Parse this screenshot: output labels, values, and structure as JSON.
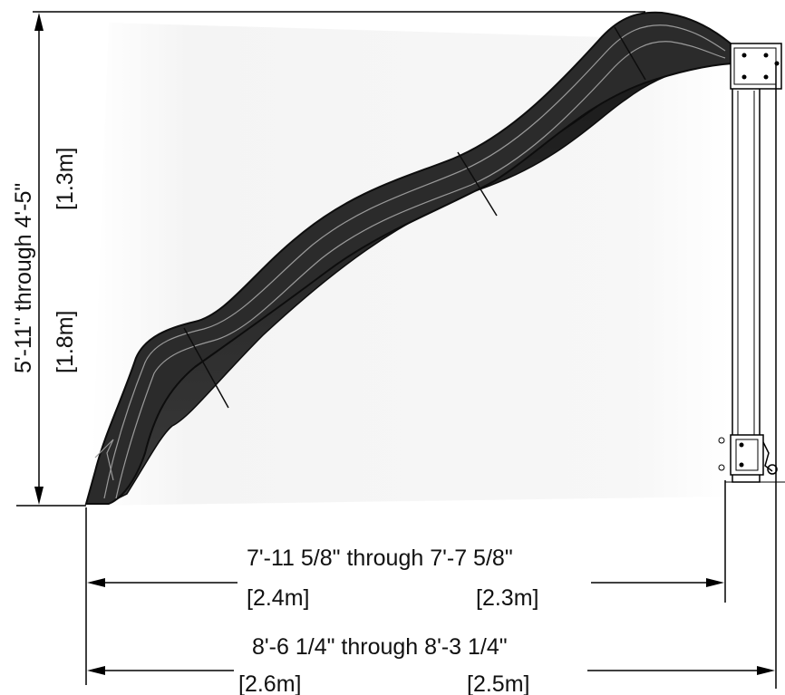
{
  "dimensions": {
    "height": {
      "text": "5'-11\" through 4'-5\"",
      "metric_high": "[1.8m]",
      "metric_low": "[1.3m]"
    },
    "inner_length": {
      "text": "7'-11 5/8\" through 7'-7 5/8\"",
      "metric_high": "[2.4m]",
      "metric_low": "[2.3m]"
    },
    "overall_length": {
      "text": "8'-6 1/4\" through 8'-3 1/4\"",
      "metric_high": "[2.6m]",
      "metric_low": "[2.5m]"
    }
  },
  "colors": {
    "slide": "#2b2b2b",
    "slide_edge": "#0d0d0d",
    "ink": "#000000",
    "post": "#ffffff"
  }
}
